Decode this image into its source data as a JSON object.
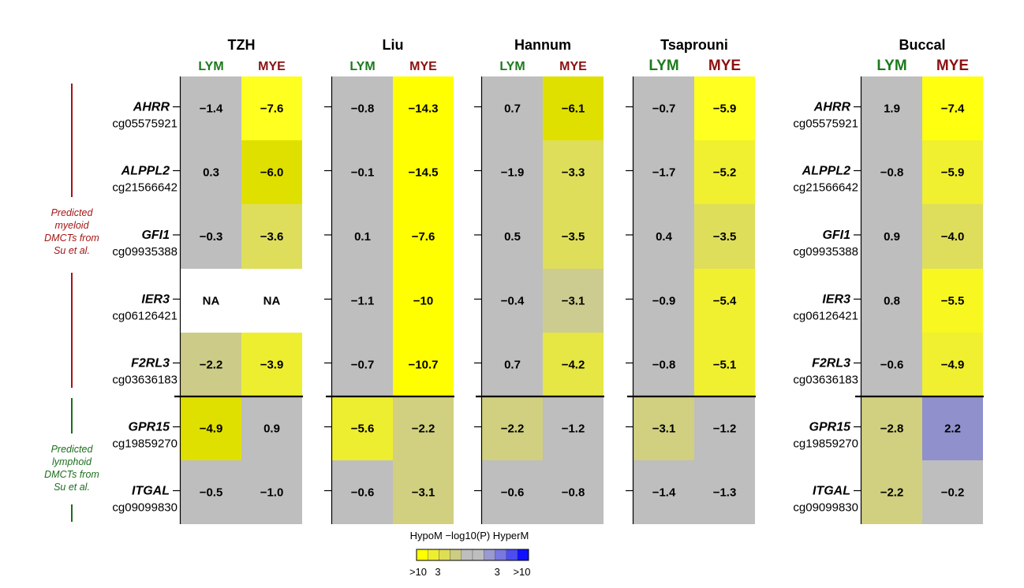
{
  "chart_data": {
    "type": "heatmap",
    "panels": [
      {
        "title": "TZH",
        "columns": [
          "LYM",
          "MYE"
        ],
        "values": [
          [
            "−1.4",
            "−7.6"
          ],
          [
            "0.3",
            "−6.0"
          ],
          [
            "−0.3",
            "−3.6"
          ],
          [
            "NA",
            "NA"
          ],
          [
            "−2.2",
            "−3.9"
          ],
          [
            "−4.9",
            "0.9"
          ],
          [
            "−0.5",
            "−1.0"
          ]
        ]
      },
      {
        "title": "Liu",
        "columns": [
          "LYM",
          "MYE"
        ],
        "values": [
          [
            "−0.8",
            "−14.3"
          ],
          [
            "−0.1",
            "−14.5"
          ],
          [
            "0.1",
            "−7.6"
          ],
          [
            "−1.1",
            "−10"
          ],
          [
            "−0.7",
            "−10.7"
          ],
          [
            "−5.6",
            "−2.2"
          ],
          [
            "−0.6",
            "−3.1"
          ]
        ]
      },
      {
        "title": "Hannum",
        "columns": [
          "LYM",
          "MYE"
        ],
        "values": [
          [
            "0.7",
            "−6.1"
          ],
          [
            "−1.9",
            "−3.3"
          ],
          [
            "0.5",
            "−3.5"
          ],
          [
            "−0.4",
            "−3.1"
          ],
          [
            "0.7",
            "−4.2"
          ],
          [
            "−2.2",
            "−1.2"
          ],
          [
            "−0.6",
            "−0.8"
          ]
        ]
      },
      {
        "title": "Tsaprouni",
        "columns": [
          "LYM",
          "MYE"
        ],
        "values": [
          [
            "−0.7",
            "−5.9"
          ],
          [
            "−1.7",
            "−5.2"
          ],
          [
            "0.4",
            "−3.5"
          ],
          [
            "−0.9",
            "−5.4"
          ],
          [
            "−0.8",
            "−5.1"
          ],
          [
            "−3.1",
            "−1.2"
          ],
          [
            "−1.4",
            "−1.3"
          ]
        ]
      },
      {
        "title": "Buccal",
        "columns": [
          "LYM",
          "MYE"
        ],
        "values": [
          [
            "1.9",
            "−7.4"
          ],
          [
            "−0.8",
            "−5.9"
          ],
          [
            "0.9",
            "−4.0"
          ],
          [
            "0.8",
            "−5.5"
          ],
          [
            "−0.6",
            "−4.9"
          ],
          [
            "−2.8",
            "2.2"
          ],
          [
            "−2.2",
            "−0.2"
          ]
        ]
      }
    ],
    "rows": [
      {
        "gene": "AHRR",
        "probe": "cg05575921"
      },
      {
        "gene": "ALPPL2",
        "probe": "cg21566642"
      },
      {
        "gene": "GFI1",
        "probe": "cg09935388"
      },
      {
        "gene": "IER3",
        "probe": "cg06126421"
      },
      {
        "gene": "F2RL3",
        "probe": "cg03636183"
      },
      {
        "gene": "GPR15",
        "probe": "cg19859270"
      },
      {
        "gene": "ITGAL",
        "probe": "cg09099830"
      }
    ],
    "row_groups": [
      {
        "label": [
          "Predicted",
          "myeloid",
          "DMCTs from",
          "Su et al."
        ],
        "rows": [
          0,
          4
        ],
        "color": "#a31515"
      },
      {
        "label": [
          "Predicted",
          "lymphoid",
          "DMCTs from",
          "Su et al."
        ],
        "rows": [
          5,
          6
        ],
        "color": "#1c6e1c"
      }
    ],
    "legend": {
      "title": "HypoM −log10(P) HyperM",
      "ticks": [
        ">10",
        "3",
        "3",
        ">10"
      ],
      "colors": [
        "#ffff00",
        "#eeee30",
        "#dede55",
        "#cccc85",
        "#bebebe",
        "#bebebe",
        "#9a9ad0",
        "#7878e0",
        "#4c4cf0",
        "#1010ff"
      ]
    },
    "colors": {
      "na": "#ffffff",
      "null": "#bebebe",
      "lym_label": "#1c7a1c",
      "mye_label": "#8c1010"
    }
  }
}
